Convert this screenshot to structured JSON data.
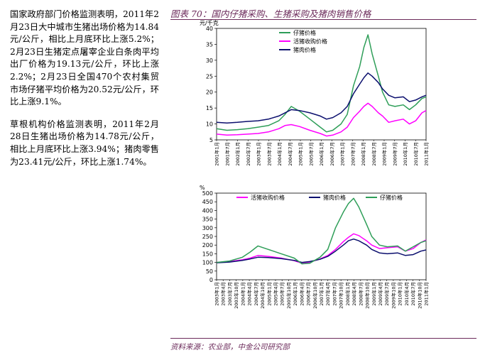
{
  "left_text": {
    "para1": "国家政府部门价格监测表明，2011年2月23日大中城市生猪出场价格为14.84元/公斤，相比上月底环比上涨5.2%；2月23日生猪定点屠宰企业白条肉平均出厂价格为19.13元/公斤，环比上涨2.2%；2月23日全国470个农村集贸市场仔猪平均价格为20.52元/公斤，环比上涨9.1%。",
    "para2": "草根机构价格监测表明，2011年2月28日生猪出场价格为14.78元/公斤，相比上月底环比上涨3.94%；猪肉零售为23.41元/公斤，环比上涨1.74%。"
  },
  "figure": {
    "title": "图表 70：国内仔猪采购、生猪采购及猪肉销售价格",
    "source": "资料来源：农业部，中金公司研究部"
  },
  "colors": {
    "piglet": "#2e9e58",
    "hog": "#ff00ff",
    "pork": "#0b0f6e",
    "accent": "#6b2a5a"
  },
  "chart_data": [
    {
      "type": "line",
      "unit_label": "元/千克",
      "ylim": [
        5,
        40
      ],
      "yticks": [
        5,
        10,
        15,
        20,
        25,
        30,
        35,
        40
      ],
      "xlim": [
        2001,
        2011.1
      ],
      "xtick_labels": [
        "2001年1月",
        "2001年7月",
        "2002年1月",
        "2002年7月",
        "2003年1月",
        "2003年7月",
        "2004年1月",
        "2004年7月",
        "2005年1月",
        "2005年7月",
        "2006年1月",
        "2006年7月",
        "2007年1月",
        "2007年7月",
        "2008年1月",
        "2008年7月",
        "2009年1月",
        "2009年7月",
        "2010年1月",
        "2010年7月",
        "2011年1月"
      ],
      "legend": [
        "仔猪价格",
        "活猪收购价格",
        "猪肉价格"
      ],
      "series": [
        {
          "name": "仔猪价格",
          "color_key": "piglet",
          "x": [
            2001.0,
            2001.5,
            2002.0,
            2002.5,
            2003.0,
            2003.5,
            2004.0,
            2004.3,
            2004.6,
            2005.0,
            2005.5,
            2006.0,
            2006.3,
            2006.6,
            2007.0,
            2007.3,
            2007.6,
            2007.9,
            2008.1,
            2008.3,
            2008.5,
            2008.8,
            2009.0,
            2009.3,
            2009.6,
            2010.0,
            2010.3,
            2010.6,
            2010.9,
            2011.1
          ],
          "values": [
            8.5,
            8,
            8.2,
            8.5,
            9,
            9.5,
            11,
            13,
            15.5,
            14,
            11.5,
            9,
            7.5,
            8,
            10,
            13,
            22,
            28,
            34,
            38,
            32,
            25,
            20,
            16,
            15.5,
            16,
            14.5,
            16,
            18,
            18.5
          ]
        },
        {
          "name": "活猪收购价格",
          "color_key": "hog",
          "x": [
            2001.0,
            2001.5,
            2002.0,
            2002.5,
            2003.0,
            2003.5,
            2004.0,
            2004.3,
            2004.6,
            2005.0,
            2005.5,
            2006.0,
            2006.3,
            2006.6,
            2007.0,
            2007.3,
            2007.6,
            2007.9,
            2008.1,
            2008.3,
            2008.5,
            2008.8,
            2009.0,
            2009.3,
            2009.6,
            2010.0,
            2010.3,
            2010.6,
            2010.9,
            2011.1
          ],
          "values": [
            6.8,
            6.5,
            6.6,
            6.8,
            7,
            7.5,
            8.5,
            9.5,
            9.8,
            9.2,
            8,
            7,
            6.2,
            6.5,
            7.5,
            9,
            12,
            14,
            15.5,
            16.5,
            15.5,
            13.5,
            12.5,
            10.5,
            11,
            11.5,
            10,
            11,
            13.5,
            14.2
          ]
        },
        {
          "name": "猪肉价格",
          "color_key": "pork",
          "x": [
            2001.0,
            2001.5,
            2002.0,
            2002.5,
            2003.0,
            2003.5,
            2004.0,
            2004.3,
            2004.6,
            2005.0,
            2005.5,
            2006.0,
            2006.3,
            2006.6,
            2007.0,
            2007.3,
            2007.6,
            2007.9,
            2008.1,
            2008.3,
            2008.5,
            2008.8,
            2009.0,
            2009.3,
            2009.6,
            2010.0,
            2010.3,
            2010.6,
            2010.9,
            2011.1
          ],
          "values": [
            10.5,
            10.3,
            10.5,
            10.8,
            11,
            11.5,
            12.5,
            13.5,
            14.5,
            14.2,
            13.5,
            12.5,
            11.5,
            12,
            13.5,
            15.5,
            19.5,
            22.5,
            24.5,
            26,
            25,
            23,
            21,
            19,
            18.2,
            18.5,
            17,
            17.5,
            18.5,
            19
          ]
        }
      ]
    },
    {
      "type": "line",
      "unit_label": "%",
      "ylim": [
        0,
        500
      ],
      "yticks": [
        0,
        50,
        100,
        150,
        200,
        250,
        300,
        350,
        400,
        450,
        500
      ],
      "xlim": [
        2003,
        2011.1
      ],
      "xtick_labels": [
        "2003年1月",
        "2003年4月",
        "2003年7月",
        "2003年10月",
        "2004年1月",
        "2004年4月",
        "2004年7月",
        "2004年10月",
        "2005年1月",
        "2005年4月",
        "2005年7月",
        "2005年10月",
        "2006年1月",
        "2006年4月",
        "2006年7月",
        "2006年10月",
        "2007年1月",
        "2007年4月",
        "2007年7月",
        "2007年10月",
        "2008年1月",
        "2008年4月",
        "2008年7月",
        "2008年10月",
        "2009年1月",
        "2009年4月",
        "2009年7月",
        "2009年10月",
        "2010年1月",
        "2010年4月",
        "2010年7月",
        "2010年10月",
        "2011年1月"
      ],
      "legend": [
        "活猪收购价格",
        "猪肉价格",
        "仔猪价格"
      ],
      "series": [
        {
          "name": "活猪收购价格",
          "color_key": "hog",
          "x": [
            2003.0,
            2003.5,
            2004.0,
            2004.3,
            2004.6,
            2005.0,
            2005.5,
            2006.0,
            2006.3,
            2006.6,
            2007.0,
            2007.3,
            2007.6,
            2007.9,
            2008.1,
            2008.3,
            2008.5,
            2008.8,
            2009.0,
            2009.3,
            2009.6,
            2010.0,
            2010.3,
            2010.6,
            2010.9,
            2011.1
          ],
          "values": [
            100,
            105,
            115,
            125,
            140,
            135,
            125,
            110,
            95,
            100,
            120,
            140,
            175,
            220,
            245,
            265,
            255,
            225,
            200,
            180,
            185,
            190,
            165,
            180,
            215,
            230
          ]
        },
        {
          "name": "猪肉价格",
          "color_key": "pork",
          "x": [
            2003.0,
            2003.5,
            2004.0,
            2004.3,
            2004.6,
            2005.0,
            2005.5,
            2006.0,
            2006.3,
            2006.6,
            2007.0,
            2007.3,
            2007.6,
            2007.9,
            2008.1,
            2008.3,
            2008.5,
            2008.8,
            2009.0,
            2009.3,
            2009.6,
            2010.0,
            2010.3,
            2010.6,
            2010.9,
            2011.1
          ],
          "values": [
            98,
            102,
            112,
            120,
            130,
            128,
            122,
            112,
            100,
            105,
            118,
            135,
            165,
            200,
            225,
            235,
            225,
            200,
            175,
            155,
            150,
            155,
            140,
            145,
            165,
            172
          ]
        },
        {
          "name": "仔猪价格",
          "color_key": "piglet",
          "x": [
            2003.0,
            2003.5,
            2004.0,
            2004.3,
            2004.6,
            2005.0,
            2005.5,
            2006.0,
            2006.3,
            2006.6,
            2007.0,
            2007.3,
            2007.6,
            2007.9,
            2008.1,
            2008.3,
            2008.5,
            2008.8,
            2009.0,
            2009.3,
            2009.6,
            2010.0,
            2010.3,
            2010.6,
            2010.9,
            2011.1
          ],
          "values": [
            100,
            108,
            130,
            160,
            195,
            175,
            150,
            125,
            92,
            95,
            130,
            175,
            300,
            390,
            440,
            470,
            420,
            320,
            250,
            200,
            190,
            195,
            165,
            190,
            215,
            225
          ]
        }
      ]
    }
  ]
}
